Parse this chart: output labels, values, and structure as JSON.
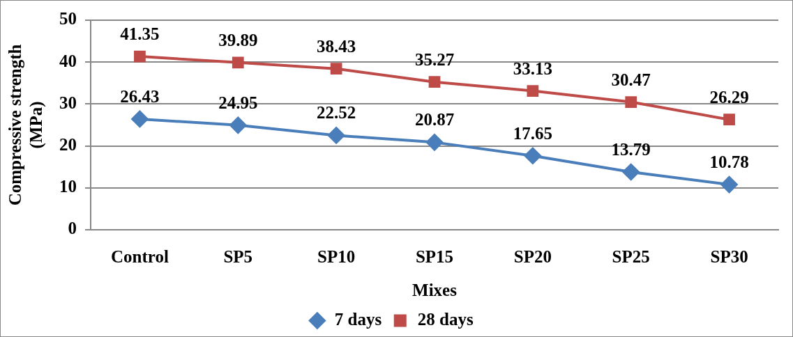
{
  "chart_data": {
    "type": "line",
    "xlabel": "Mixes",
    "ylabel": "Compressive strength (MPa)",
    "categories": [
      "Control",
      "SP5",
      "SP10",
      "SP15",
      "SP20",
      "SP25",
      "SP30"
    ],
    "series": [
      {
        "name": "7 days",
        "color": "#4a7ebb",
        "marker": "diamond",
        "values": [
          26.43,
          24.95,
          22.52,
          20.87,
          17.65,
          13.79,
          10.78
        ]
      },
      {
        "name": "28 days",
        "color": "#be4b48",
        "marker": "square",
        "values": [
          41.35,
          39.89,
          38.43,
          35.27,
          33.13,
          30.47,
          26.29
        ]
      }
    ],
    "ylim": [
      0,
      50
    ],
    "yticks": [
      0,
      10,
      20,
      30,
      40,
      50
    ],
    "grid": "y",
    "legend": "bottom",
    "data_labels": true,
    "line_style": "solid"
  }
}
